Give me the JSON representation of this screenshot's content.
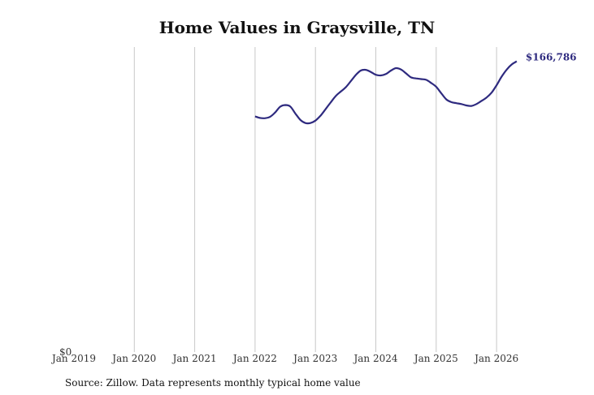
{
  "chart_data": {
    "type": "line",
    "title": "Home Values in Graysville, TN",
    "x_tick_labels": [
      "Jan 2019",
      "Jan 2020",
      "Jan 2021",
      "Jan 2022",
      "Jan 2023",
      "Jan 2024",
      "Jan 2025",
      "Jan 2026"
    ],
    "y_tick_label": "$0",
    "ylim": [
      0,
      175000
    ],
    "grid": "vertical",
    "series_color": "#2e2a7f",
    "end_label": "$166,786",
    "series": [
      {
        "points": [
          [
            "2022-01",
            135200
          ],
          [
            "2022-02",
            134300
          ],
          [
            "2022-03",
            134200
          ],
          [
            "2022-04",
            135000
          ],
          [
            "2022-05",
            137500
          ],
          [
            "2022-06",
            140800
          ],
          [
            "2022-07",
            141700
          ],
          [
            "2022-08",
            140900
          ],
          [
            "2022-09",
            136900
          ],
          [
            "2022-10",
            133200
          ],
          [
            "2022-11",
            131400
          ],
          [
            "2022-12",
            131400
          ],
          [
            "2023-01",
            132800
          ],
          [
            "2023-02",
            135600
          ],
          [
            "2023-03",
            139300
          ],
          [
            "2023-04",
            143100
          ],
          [
            "2023-05",
            146800
          ],
          [
            "2023-06",
            149400
          ],
          [
            "2023-07",
            151800
          ],
          [
            "2023-08",
            155300
          ],
          [
            "2023-09",
            158900
          ],
          [
            "2023-10",
            161500
          ],
          [
            "2023-11",
            161900
          ],
          [
            "2023-12",
            160700
          ],
          [
            "2024-01",
            159100
          ],
          [
            "2024-02",
            158700
          ],
          [
            "2024-03",
            159500
          ],
          [
            "2024-04",
            161500
          ],
          [
            "2024-05",
            162900
          ],
          [
            "2024-06",
            162100
          ],
          [
            "2024-07",
            159900
          ],
          [
            "2024-08",
            157600
          ],
          [
            "2024-09",
            157000
          ],
          [
            "2024-10",
            156600
          ],
          [
            "2024-11",
            156200
          ],
          [
            "2024-12",
            154400
          ],
          [
            "2025-01",
            152200
          ],
          [
            "2025-02",
            148500
          ],
          [
            "2025-03",
            145000
          ],
          [
            "2025-04",
            143400
          ],
          [
            "2025-05",
            142800
          ],
          [
            "2025-06",
            142300
          ],
          [
            "2025-07",
            141500
          ],
          [
            "2025-08",
            141200
          ],
          [
            "2025-09",
            142300
          ],
          [
            "2025-10",
            144100
          ],
          [
            "2025-11",
            146000
          ],
          [
            "2025-12",
            148800
          ],
          [
            "2026-01",
            153100
          ],
          [
            "2026-02",
            158000
          ],
          [
            "2026-03",
            162000
          ],
          [
            "2026-04",
            165000
          ],
          [
            "2026-05",
            166786
          ]
        ]
      }
    ]
  },
  "footer": {
    "source": "Source: Zillow. Data represents monthly typical home value"
  }
}
